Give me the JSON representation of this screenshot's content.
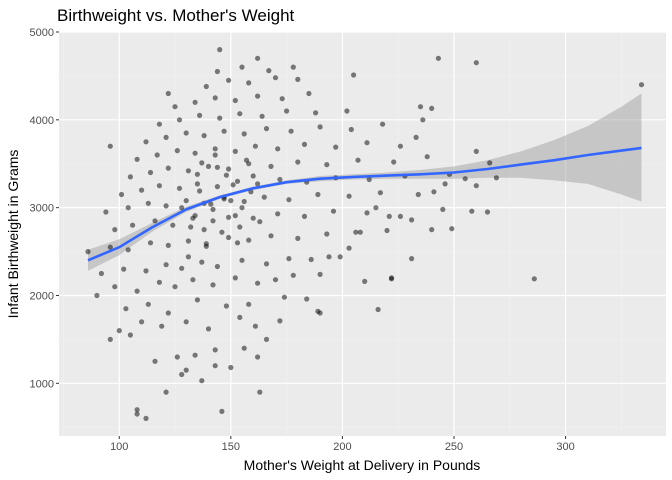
{
  "chart_data": {
    "type": "scatter",
    "title": "Birthweight vs. Mother's Weight",
    "xlabel": "Mother's Weight at Delivery in Pounds",
    "ylabel": "Infant Birthweight in Grams",
    "xlim": [
      73,
      345
    ],
    "ylim": [
      400,
      5000
    ],
    "x_ticks": [
      100,
      150,
      200,
      250,
      300
    ],
    "x_tick_labels": [
      "100",
      "150",
      "200",
      "250",
      "300"
    ],
    "y_ticks": [
      1000,
      2000,
      3000,
      4000,
      5000
    ],
    "y_tick_labels": [
      "1000",
      "2000",
      "3000",
      "4000",
      "5000"
    ],
    "grid": true,
    "point_color": "#000000",
    "point_alpha": 0.5,
    "smooth_color": "#3366FF",
    "ribbon_color": "#999999",
    "points": [
      [
        108,
        650
      ],
      [
        112,
        600
      ],
      [
        108,
        700
      ],
      [
        146,
        680
      ],
      [
        121,
        900
      ],
      [
        137,
        1030
      ],
      [
        163,
        900
      ],
      [
        128,
        1100
      ],
      [
        130,
        1150
      ],
      [
        143,
        1200
      ],
      [
        150,
        1180
      ],
      [
        116,
        1250
      ],
      [
        126,
        1300
      ],
      [
        134,
        1320
      ],
      [
        143,
        1380
      ],
      [
        162,
        1300
      ],
      [
        166,
        1500
      ],
      [
        156,
        1400
      ],
      [
        100,
        1600
      ],
      [
        96,
        1500
      ],
      [
        105,
        1550
      ],
      [
        110,
        1700
      ],
      [
        119,
        1650
      ],
      [
        130,
        1700
      ],
      [
        140,
        1620
      ],
      [
        154,
        1750
      ],
      [
        161,
        1650
      ],
      [
        172,
        1710
      ],
      [
        189,
        1820
      ],
      [
        216,
        1840
      ],
      [
        103,
        1850
      ],
      [
        113,
        1900
      ],
      [
        122,
        1800
      ],
      [
        135,
        1950
      ],
      [
        148,
        1880
      ],
      [
        158,
        1900
      ],
      [
        174,
        1980
      ],
      [
        184,
        1960
      ],
      [
        90,
        2000
      ],
      [
        98,
        2100
      ],
      [
        108,
        2050
      ],
      [
        118,
        2150
      ],
      [
        125,
        2100
      ],
      [
        133,
        2180
      ],
      [
        142,
        2120
      ],
      [
        152,
        2200
      ],
      [
        162,
        2140
      ],
      [
        170,
        2180
      ],
      [
        178,
        2230
      ],
      [
        190,
        2240
      ],
      [
        210,
        2160
      ],
      [
        222,
        2190
      ],
      [
        286,
        2190
      ],
      [
        92,
        2250
      ],
      [
        102,
        2300
      ],
      [
        112,
        2280
      ],
      [
        121,
        2350
      ],
      [
        128,
        2310
      ],
      [
        137,
        2380
      ],
      [
        144,
        2330
      ],
      [
        155,
        2400
      ],
      [
        166,
        2360
      ],
      [
        176,
        2420
      ],
      [
        186,
        2410
      ],
      [
        199,
        2440
      ],
      [
        86,
        2500
      ],
      [
        96,
        2550
      ],
      [
        104,
        2520
      ],
      [
        114,
        2600
      ],
      [
        122,
        2570
      ],
      [
        131,
        2620
      ],
      [
        139,
        2590
      ],
      [
        149,
        2660
      ],
      [
        158,
        2630
      ],
      [
        168,
        2680
      ],
      [
        180,
        2650
      ],
      [
        193,
        2700
      ],
      [
        206,
        2720
      ],
      [
        220,
        2740
      ],
      [
        240,
        2750
      ],
      [
        98,
        2750
      ],
      [
        106,
        2800
      ],
      [
        116,
        2850
      ],
      [
        124,
        2800
      ],
      [
        133,
        2880
      ],
      [
        142,
        2850
      ],
      [
        152,
        2910
      ],
      [
        160,
        2880
      ],
      [
        171,
        2930
      ],
      [
        183,
        2900
      ],
      [
        196,
        2960
      ],
      [
        211,
        2940
      ],
      [
        226,
        2900
      ],
      [
        245,
        2980
      ],
      [
        265,
        2950
      ],
      [
        94,
        2950
      ],
      [
        104,
        3000
      ],
      [
        113,
        3050
      ],
      [
        121,
        3020
      ],
      [
        130,
        3080
      ],
      [
        138,
        3050
      ],
      [
        147,
        3100
      ],
      [
        156,
        3070
      ],
      [
        165,
        3120
      ],
      [
        176,
        3090
      ],
      [
        189,
        3150
      ],
      [
        203,
        3130
      ],
      [
        217,
        3170
      ],
      [
        234,
        3150
      ],
      [
        101,
        3150
      ],
      [
        110,
        3200
      ],
      [
        118,
        3250
      ],
      [
        127,
        3220
      ],
      [
        135,
        3270
      ],
      [
        144,
        3240
      ],
      [
        153,
        3300
      ],
      [
        162,
        3270
      ],
      [
        172,
        3320
      ],
      [
        184,
        3290
      ],
      [
        197,
        3340
      ],
      [
        212,
        3320
      ],
      [
        228,
        3360
      ],
      [
        248,
        3380
      ],
      [
        266,
        3510
      ],
      [
        105,
        3350
      ],
      [
        114,
        3400
      ],
      [
        122,
        3450
      ],
      [
        131,
        3420
      ],
      [
        140,
        3470
      ],
      [
        149,
        3440
      ],
      [
        158,
        3500
      ],
      [
        168,
        3470
      ],
      [
        180,
        3520
      ],
      [
        193,
        3490
      ],
      [
        207,
        3540
      ],
      [
        223,
        3520
      ],
      [
        238,
        3580
      ],
      [
        108,
        3550
      ],
      [
        117,
        3600
      ],
      [
        126,
        3650
      ],
      [
        134,
        3620
      ],
      [
        143,
        3670
      ],
      [
        152,
        3640
      ],
      [
        161,
        3700
      ],
      [
        171,
        3670
      ],
      [
        183,
        3720
      ],
      [
        197,
        3690
      ],
      [
        211,
        3740
      ],
      [
        226,
        3700
      ],
      [
        96,
        3700
      ],
      [
        112,
        3750
      ],
      [
        121,
        3800
      ],
      [
        130,
        3850
      ],
      [
        138,
        3820
      ],
      [
        147,
        3870
      ],
      [
        156,
        3840
      ],
      [
        166,
        3900
      ],
      [
        177,
        3870
      ],
      [
        190,
        3920
      ],
      [
        204,
        3890
      ],
      [
        218,
        3950
      ],
      [
        236,
        4000
      ],
      [
        118,
        3950
      ],
      [
        127,
        4000
      ],
      [
        136,
        4050
      ],
      [
        145,
        4020
      ],
      [
        154,
        4070
      ],
      [
        164,
        4040
      ],
      [
        175,
        4100
      ],
      [
        188,
        4080
      ],
      [
        202,
        4100
      ],
      [
        240,
        4130
      ],
      [
        125,
        4150
      ],
      [
        134,
        4200
      ],
      [
        143,
        4250
      ],
      [
        152,
        4220
      ],
      [
        162,
        4270
      ],
      [
        173,
        4240
      ],
      [
        185,
        4300
      ],
      [
        122,
        4300
      ],
      [
        139,
        4380
      ],
      [
        149,
        4450
      ],
      [
        158,
        4420
      ],
      [
        170,
        4480
      ],
      [
        180,
        4460
      ],
      [
        144,
        4550
      ],
      [
        155,
        4600
      ],
      [
        167,
        4560
      ],
      [
        178,
        4600
      ],
      [
        145,
        4800
      ],
      [
        162,
        4700
      ],
      [
        205,
        4510
      ],
      [
        243,
        4700
      ],
      [
        260,
        4650
      ],
      [
        334,
        4400
      ],
      [
        235,
        4150
      ],
      [
        233,
        3800
      ],
      [
        260,
        3640
      ],
      [
        260,
        3250
      ],
      [
        269,
        3340
      ],
      [
        255,
        3330
      ],
      [
        246,
        3270
      ],
      [
        241,
        3180
      ],
      [
        231,
        2860
      ],
      [
        249,
        2760
      ],
      [
        258,
        2960
      ],
      [
        194,
        2440
      ],
      [
        190,
        1800
      ],
      [
        222,
        2200
      ],
      [
        231,
        2420
      ],
      [
        221,
        2900
      ],
      [
        215,
        3000
      ],
      [
        203,
        2540
      ],
      [
        208,
        2720
      ],
      [
        138,
        2750
      ],
      [
        142,
        2980
      ],
      [
        147,
        3120
      ],
      [
        151,
        3260
      ],
      [
        136,
        3190
      ],
      [
        144,
        3460
      ],
      [
        149,
        2890
      ],
      [
        132,
        2780
      ],
      [
        155,
        3000
      ],
      [
        159,
        3180
      ],
      [
        141,
        3040
      ],
      [
        146,
        2720
      ],
      [
        153,
        2600
      ],
      [
        128,
        3000
      ],
      [
        135,
        3380
      ],
      [
        160,
        3360
      ],
      [
        163,
        2840
      ],
      [
        139,
        2560
      ],
      [
        131,
        2440
      ],
      [
        157,
        3540
      ],
      [
        143,
        3600
      ],
      [
        150,
        3080
      ],
      [
        134,
        2910
      ],
      [
        148,
        3370
      ],
      [
        137,
        3510
      ],
      [
        154,
        2780
      ]
    ],
    "smooth_line": [
      [
        86,
        2400
      ],
      [
        100,
        2550
      ],
      [
        115,
        2780
      ],
      [
        130,
        2980
      ],
      [
        145,
        3120
      ],
      [
        160,
        3220
      ],
      [
        175,
        3290
      ],
      [
        190,
        3330
      ],
      [
        205,
        3350
      ],
      [
        220,
        3365
      ],
      [
        235,
        3380
      ],
      [
        250,
        3400
      ],
      [
        265,
        3440
      ],
      [
        280,
        3490
      ],
      [
        295,
        3540
      ],
      [
        310,
        3600
      ],
      [
        325,
        3650
      ],
      [
        334,
        3680
      ]
    ],
    "ribbon_upper": [
      [
        86,
        2520
      ],
      [
        100,
        2640
      ],
      [
        115,
        2830
      ],
      [
        130,
        3010
      ],
      [
        145,
        3140
      ],
      [
        160,
        3240
      ],
      [
        175,
        3310
      ],
      [
        190,
        3360
      ],
      [
        205,
        3380
      ],
      [
        220,
        3400
      ],
      [
        235,
        3430
      ],
      [
        250,
        3470
      ],
      [
        265,
        3540
      ],
      [
        280,
        3640
      ],
      [
        295,
        3770
      ],
      [
        310,
        3930
      ],
      [
        325,
        4150
      ],
      [
        334,
        4300
      ]
    ],
    "ribbon_lower": [
      [
        86,
        2280
      ],
      [
        100,
        2460
      ],
      [
        115,
        2730
      ],
      [
        130,
        2950
      ],
      [
        145,
        3100
      ],
      [
        160,
        3200
      ],
      [
        175,
        3270
      ],
      [
        190,
        3300
      ],
      [
        205,
        3320
      ],
      [
        220,
        3330
      ],
      [
        235,
        3330
      ],
      [
        250,
        3330
      ],
      [
        265,
        3340
      ],
      [
        280,
        3340
      ],
      [
        295,
        3310
      ],
      [
        310,
        3270
      ],
      [
        325,
        3150
      ],
      [
        334,
        3070
      ]
    ]
  }
}
